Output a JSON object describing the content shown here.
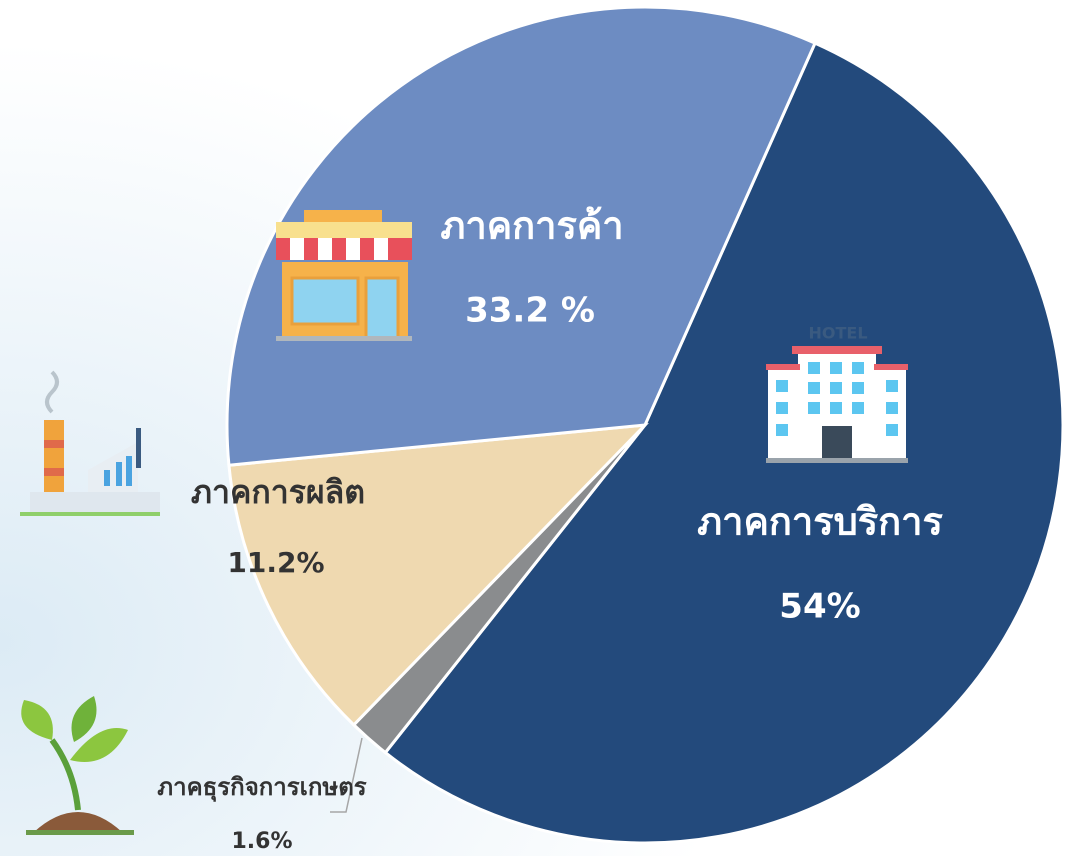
{
  "chart_data": {
    "type": "pie",
    "categories": [
      "ภาคการบริการ",
      "ภาคธุรกิจการเกษตร",
      "ภาคการผลิต",
      "ภาคการค้า"
    ],
    "values": [
      54,
      1.6,
      11.2,
      33.2
    ],
    "value_labels": [
      "54%",
      "1.6%",
      "11.2%",
      "33.2 %"
    ],
    "colors": [
      "#234a7c",
      "#8a8c8e",
      "#efd9b0",
      "#6d8cc2"
    ]
  }
}
